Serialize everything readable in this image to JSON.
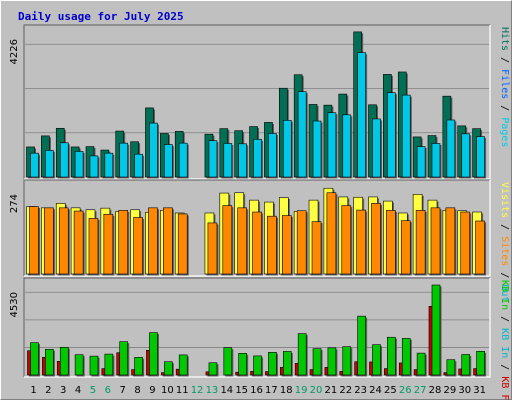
{
  "chart_data": {
    "type": "bar",
    "title": "Daily usage for July 2025",
    "days": [
      "1",
      "2",
      "3",
      "4",
      "5",
      "6",
      "7",
      "8",
      "9",
      "10",
      "11",
      "12",
      "13",
      "14",
      "15",
      "16",
      "17",
      "18",
      "19",
      "20",
      "21",
      "22",
      "23",
      "24",
      "25",
      "26",
      "27",
      "28",
      "29",
      "30",
      "31"
    ],
    "weekend_days": [
      "5",
      "6",
      "12",
      "13",
      "19",
      "20",
      "26",
      "27"
    ],
    "colors": {
      "day_label_weekday": "#000000",
      "day_label_weekend": "#009966",
      "hits": "#006f54",
      "files": "#00c8e6",
      "pages": "#00c8e6",
      "visits": "#ffff42",
      "sites": "#ff8800",
      "kb_in": "#00c800",
      "kb_out": "#00b4c8",
      "kb_f": "#c80000",
      "title": "#0000cc",
      "panel_bg": "#c0c0c0",
      "grid": "#808080"
    },
    "panels": [
      {
        "max_label": "4226",
        "ymax": 4226,
        "grid": true,
        "legend": [
          {
            "text": "Hits",
            "color": "#006f54"
          },
          {
            "text": "/",
            "color": "#000000"
          },
          {
            "text": "Files",
            "color": "#0060ff"
          },
          {
            "text": "/",
            "color": "#000000"
          },
          {
            "text": "Pages",
            "color": "#00c8e6"
          }
        ],
        "series": [
          {
            "name": "Hits",
            "values": [
              870,
              1190,
              1410,
              870,
              880,
              780,
              1330,
              1020,
              2000,
              1260,
              1320,
              0,
              1240,
              1400,
              1340,
              1460,
              1580,
              2570,
              2960,
              2100,
              2080,
              2400,
              4200,
              2090,
              2970,
              3040,
              1160,
              1200,
              2340,
              1480,
              1400
            ],
            "color_key": "hits"
          },
          {
            "name": "Files",
            "values": [
              690,
              770,
              990,
              740,
              610,
              690,
              980,
              660,
              1560,
              940,
              980,
              0,
              1050,
              970,
              960,
              1090,
              1260,
              1640,
              2470,
              1620,
              1860,
              1800,
              3600,
              1680,
              2440,
              2370,
              880,
              970,
              1650,
              1250,
              1170
            ],
            "color_key": "files"
          },
          {
            "name": "Pages",
            "values": [
              0,
              0,
              0,
              0,
              0,
              0,
              0,
              0,
              0,
              0,
              0,
              0,
              0,
              0,
              0,
              0,
              0,
              0,
              0,
              0,
              0,
              0,
              0,
              0,
              0,
              0,
              0,
              0,
              0,
              0,
              0
            ],
            "color_key": "pages"
          }
        ]
      },
      {
        "max_label": "274",
        "ymax": 274,
        "grid": false,
        "legend": [
          {
            "text": "Visits",
            "color": "#ffff42"
          },
          {
            "text": "/",
            "color": "#000000"
          },
          {
            "text": "Sites",
            "color": "#ff8800"
          },
          {
            "text": "/",
            "color": "#000000"
          },
          {
            "text": "Out",
            "color": "#00b4c8"
          }
        ],
        "series": [
          {
            "name": "Visits",
            "values": [
              210,
              206,
              220,
              206,
              200,
              205,
              195,
              200,
              192,
              198,
              190,
              0,
              190,
              252,
              253,
              230,
              224,
              238,
              195,
              230,
              267,
              240,
              239,
              240,
              227,
              190,
              248,
              230,
              198,
              197,
              193
            ],
            "color_key": "visits"
          },
          {
            "name": "Sites",
            "values": [
              210,
              206,
              206,
              196,
              173,
              186,
              198,
              176,
              206,
              206,
              187,
              0,
              159,
              213,
              206,
              193,
              180,
              182,
              197,
              163,
              253,
              213,
              199,
              220,
              198,
              166,
              198,
              206,
              206,
              193,
              165
            ],
            "color_key": "sites"
          }
        ]
      },
      {
        "max_label": "4530",
        "ymax": 4530,
        "grid": true,
        "legend": [
          {
            "text": "KB In",
            "color": "#00c800"
          },
          {
            "text": "/",
            "color": "#000000"
          },
          {
            "text": "KB In",
            "color": "#00b4c8"
          },
          {
            "text": "/",
            "color": "#000000"
          },
          {
            "text": "KB F",
            "color": "#c80000"
          }
        ],
        "series": [
          {
            "name": "KB F",
            "values": [
              1210,
              880,
              680,
              0,
              0,
              320,
              1110,
              270,
              1230,
              120,
              290,
              0,
              160,
              0,
              140,
              180,
              170,
              380,
              580,
              270,
              380,
              180,
              660,
              650,
              320,
              600,
              270,
              3420,
              120,
              300,
              320
            ],
            "color_key": "kb_f"
          },
          {
            "name": "KB In",
            "values": [
              1610,
              1280,
              1380,
              1010,
              940,
              1040,
              1660,
              880,
              2110,
              660,
              1000,
              0,
              610,
              1360,
              1080,
              950,
              1130,
              1170,
              2060,
              1310,
              1350,
              1410,
              2930,
              1510,
              1880,
              1820,
              1090,
              4480,
              760,
              1020,
              1180
            ],
            "color_key": "kb_in"
          }
        ]
      }
    ]
  }
}
